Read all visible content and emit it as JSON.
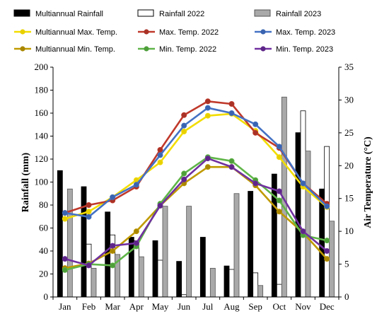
{
  "chart_data": {
    "type": "bar+line",
    "categories": [
      "Jan",
      "Feb",
      "Mar",
      "Apr",
      "May",
      "Jun",
      "Jul",
      "Aug",
      "Sep",
      "Oct",
      "Nov",
      "Dec"
    ],
    "ylabel": "Rainfall (mm)",
    "y2label": "Air Temperature (°C)",
    "ylim": [
      0,
      200
    ],
    "yticks": [
      0,
      20,
      40,
      60,
      80,
      100,
      120,
      140,
      160,
      180,
      200
    ],
    "y2lim": [
      0,
      35
    ],
    "y2ticks": [
      0,
      5,
      10,
      15,
      20,
      25,
      30,
      35
    ],
    "grid": false,
    "legend_position": "top",
    "bar_series": [
      {
        "name": "Multiannual Rainfall",
        "color": "#000000",
        "stroke": "#000000",
        "values": [
          110,
          96,
          74,
          52,
          49,
          31,
          52,
          27,
          92,
          107,
          143,
          94
        ]
      },
      {
        "name": "Rainfall 2022",
        "color": "#ffffff",
        "stroke": "#000000",
        "values": [
          0,
          46,
          54,
          49,
          32,
          2,
          0,
          24,
          21,
          11,
          162,
          131
        ]
      },
      {
        "name": "Rainfall 2023",
        "color": "#a9a9a9",
        "stroke": "#555555",
        "values": [
          94,
          25,
          37,
          35,
          79,
          79,
          25,
          90,
          10,
          174,
          127,
          66
        ]
      }
    ],
    "line_series": [
      {
        "name": "Multiannual Max. Temp.",
        "color": "#f2dd00",
        "marker": "#e8d000",
        "values": [
          11.9,
          13.0,
          15.2,
          17.8,
          20.5,
          25.2,
          27.6,
          27.9,
          25.3,
          21.3,
          16.8,
          13.7
        ]
      },
      {
        "name": "Max. Temp. 2022",
        "color": "#c0392b",
        "marker": "#a93226",
        "values": [
          12.8,
          14.0,
          14.7,
          16.8,
          22.4,
          27.7,
          29.8,
          29.4,
          25.0,
          22.7,
          17.3,
          14.2
        ]
      },
      {
        "name": "Max. Temp. 2023",
        "color": "#4472c4",
        "marker": "#3a64b0",
        "values": [
          12.8,
          12.2,
          15.2,
          17.1,
          21.6,
          26.1,
          28.8,
          28.0,
          26.3,
          22.9,
          17.3,
          13.8
        ]
      },
      {
        "name": "Multiannual Min. Temp.",
        "color": "#c09a00",
        "marker": "#a88600",
        "values": [
          4.4,
          5.1,
          7.0,
          10.0,
          13.9,
          17.3,
          19.8,
          19.8,
          17.0,
          13.0,
          9.8,
          5.8
        ]
      },
      {
        "name": "Min. Temp. 2022",
        "color": "#5fb548",
        "marker": "#4e9e3a",
        "values": [
          4.1,
          5.0,
          4.8,
          7.7,
          14.2,
          18.8,
          21.3,
          20.7,
          17.8,
          14.7,
          9.4,
          8.6
        ]
      },
      {
        "name": "Min. Temp. 2023",
        "color": "#7030a0",
        "marker": "#5e2688",
        "values": [
          5.8,
          4.8,
          7.8,
          8.2,
          13.9,
          17.9,
          21.1,
          19.8,
          17.3,
          16.1,
          10.0,
          7.0
        ]
      }
    ]
  }
}
